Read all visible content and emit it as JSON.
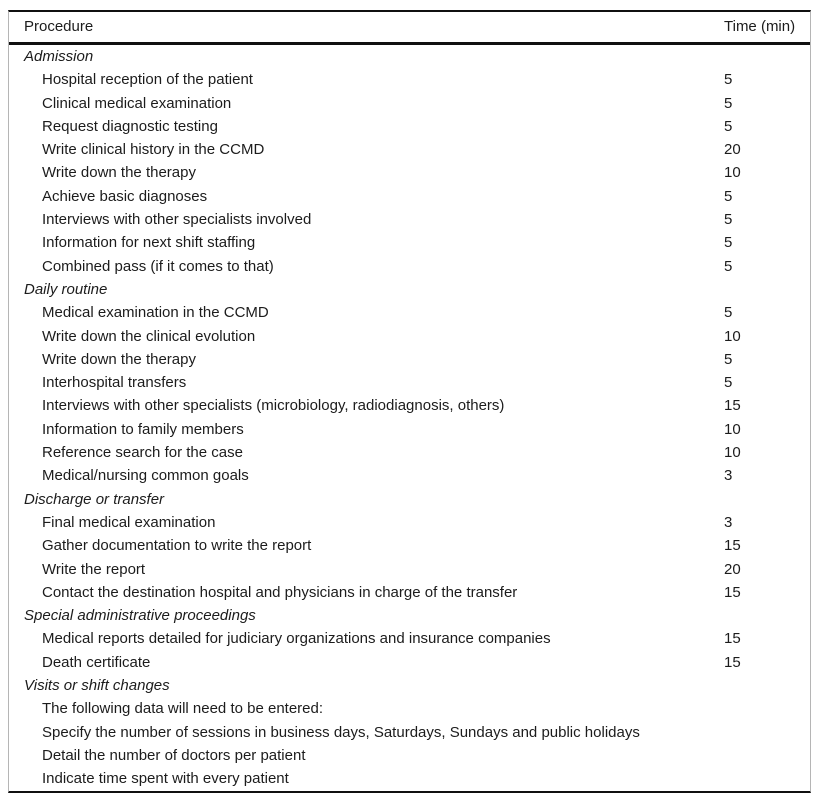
{
  "table": {
    "columns": {
      "procedure": "Procedure",
      "time": "Time (min)"
    },
    "sections": [
      {
        "title": "Admission",
        "rows": [
          {
            "procedure": "Hospital reception of the patient",
            "time": "5"
          },
          {
            "procedure": "Clinical medical examination",
            "time": "5"
          },
          {
            "procedure": "Request diagnostic testing",
            "time": "5"
          },
          {
            "procedure": "Write clinical history in the CCMD",
            "time": "20"
          },
          {
            "procedure": "Write down the therapy",
            "time": "10"
          },
          {
            "procedure": "Achieve basic diagnoses",
            "time": "5"
          },
          {
            "procedure": "Interviews with other specialists involved",
            "time": "5"
          },
          {
            "procedure": "Information for next shift staffing",
            "time": "5"
          },
          {
            "procedure": "Combined pass (if it comes to that)",
            "time": "5"
          }
        ]
      },
      {
        "title": "Daily routine",
        "rows": [
          {
            "procedure": "Medical examination in the CCMD",
            "time": "5"
          },
          {
            "procedure": "Write down the clinical evolution",
            "time": "10"
          },
          {
            "procedure": "Write down the therapy",
            "time": "5"
          },
          {
            "procedure": "Interhospital transfers",
            "time": "5"
          },
          {
            "procedure": "Interviews with other specialists (microbiology, radiodiagnosis, others)",
            "time": "15"
          },
          {
            "procedure": "Information to family members",
            "time": "10"
          },
          {
            "procedure": "Reference search for the case",
            "time": "10"
          },
          {
            "procedure": "Medical/nursing common goals",
            "time": "3"
          }
        ]
      },
      {
        "title": "Discharge or transfer",
        "rows": [
          {
            "procedure": "Final medical examination",
            "time": "3"
          },
          {
            "procedure": "Gather documentation to write the report",
            "time": "15"
          },
          {
            "procedure": "Write the report",
            "time": "20"
          },
          {
            "procedure": "Contact the destination hospital and physicians in charge of the transfer",
            "time": "15"
          }
        ]
      },
      {
        "title": "Special administrative proceedings",
        "rows": [
          {
            "procedure": "Medical reports detailed for judiciary organizations and insurance companies",
            "time": "15"
          },
          {
            "procedure": "Death certificate",
            "time": "15"
          }
        ]
      },
      {
        "title": "Visits or shift changes",
        "rows": [
          {
            "procedure": "The following data will need to be entered:",
            "time": ""
          },
          {
            "procedure": "Specify the number of sessions in business days, Saturdays, Sundays and public holidays",
            "time": ""
          },
          {
            "procedure": "Detail the number of doctors per patient",
            "time": ""
          },
          {
            "procedure": "Indicate time spent with every patient",
            "time": ""
          }
        ]
      }
    ]
  },
  "colors": {
    "rule": "#101010",
    "side_border": "#b5b5b5",
    "text": "#1c1c1c",
    "background": "#ffffff"
  }
}
